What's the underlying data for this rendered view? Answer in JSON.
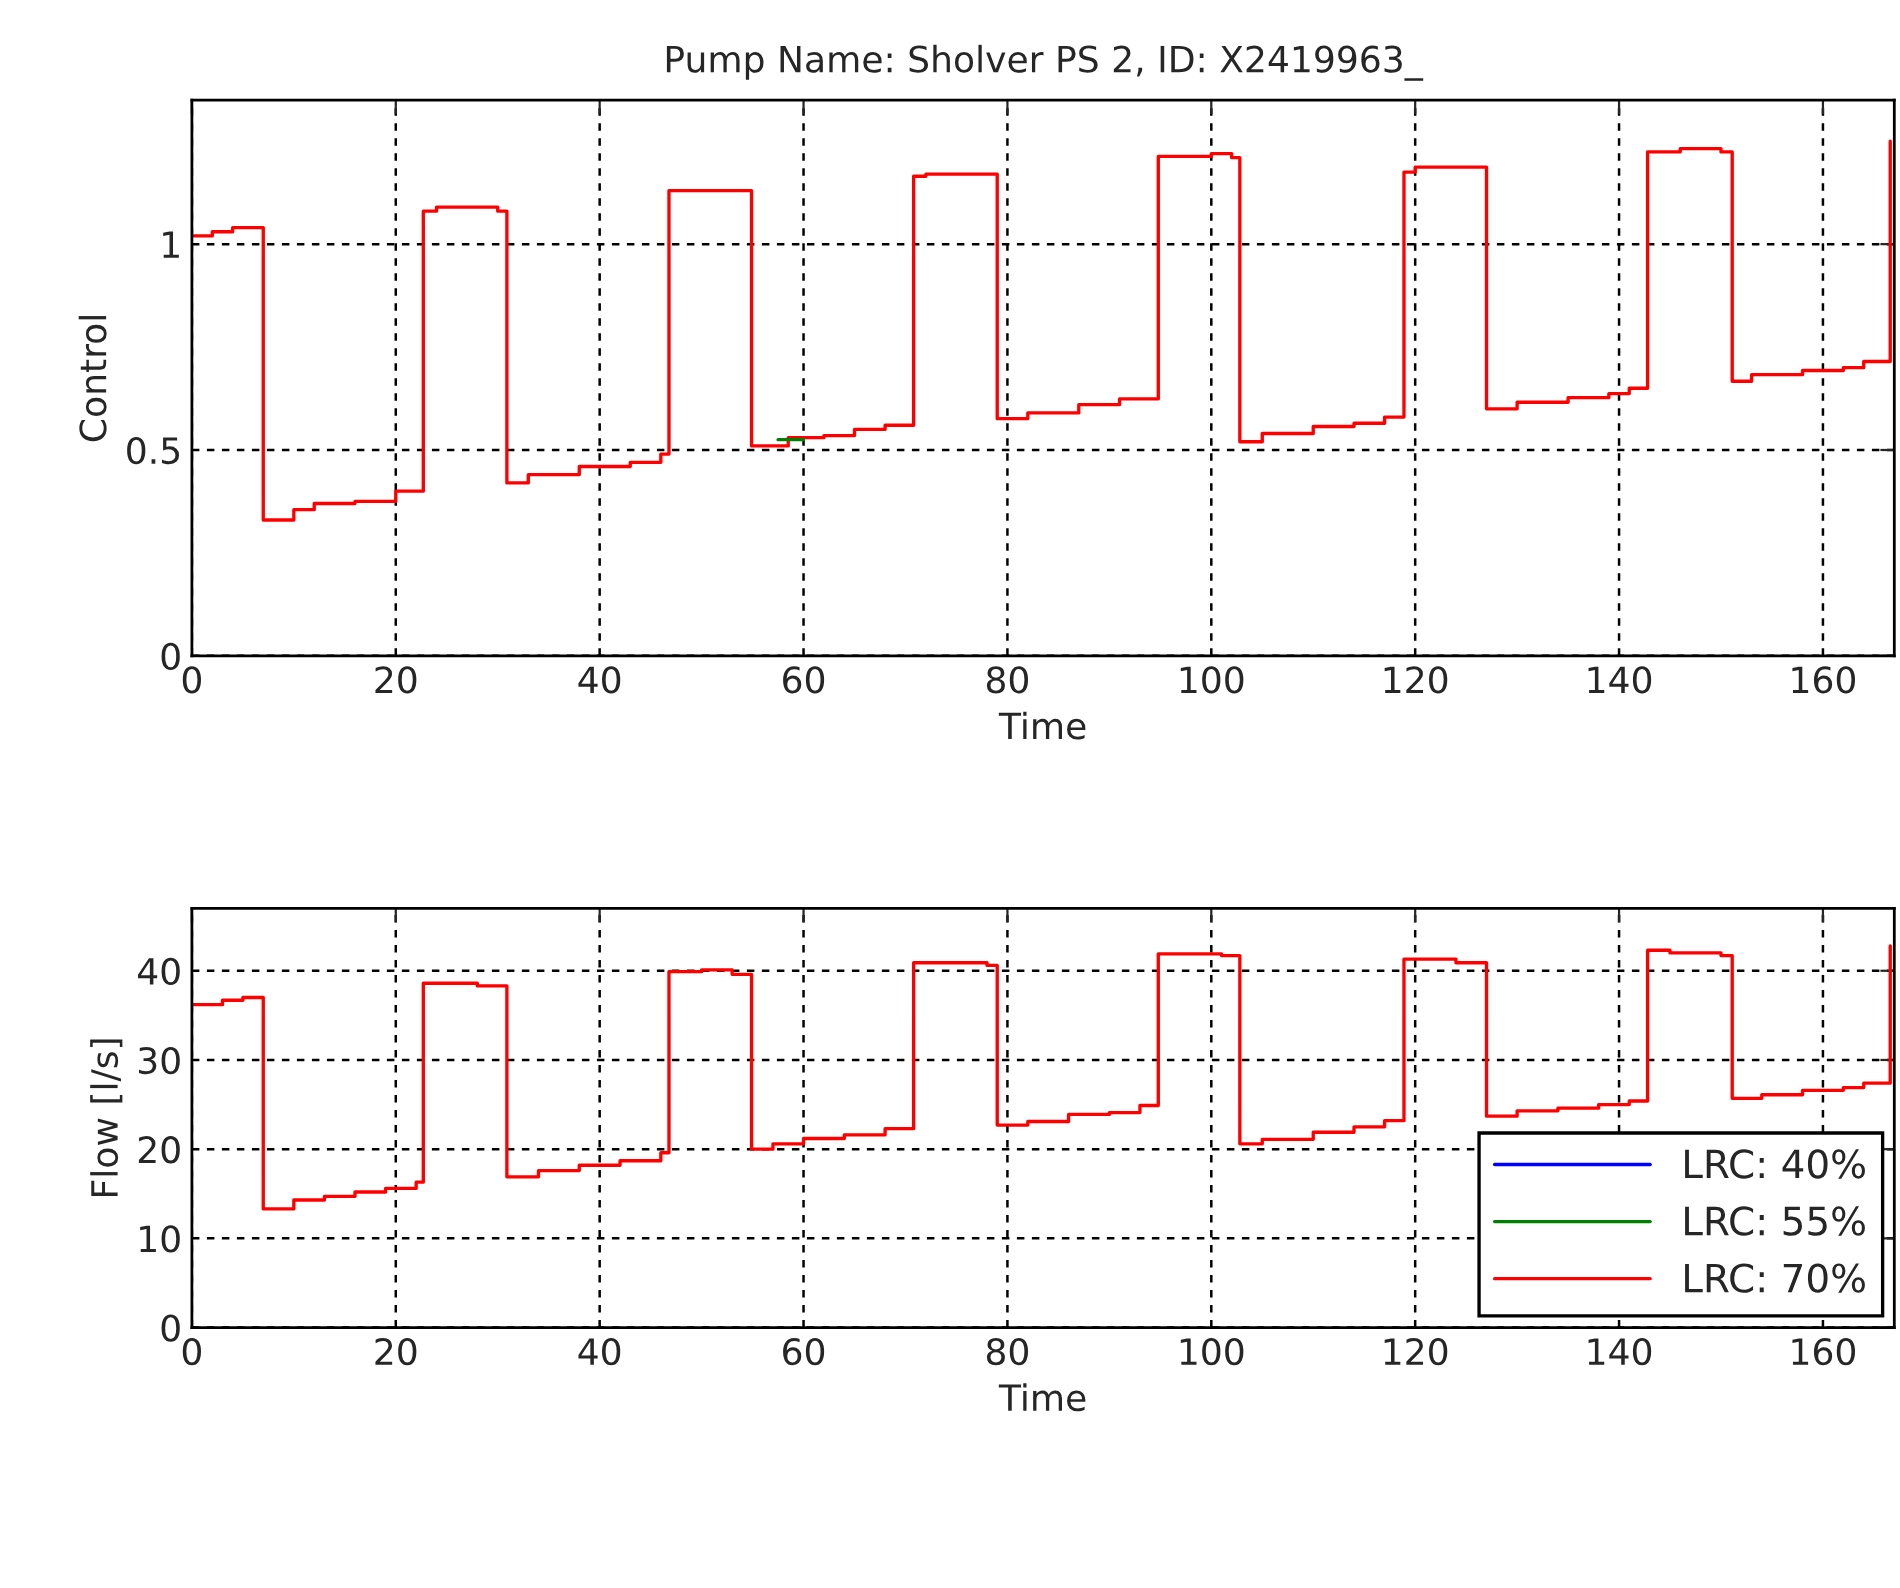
{
  "chart_data": [
    {
      "type": "step",
      "title": "Pump Name: Sholver PS 2, ID: X2419963_",
      "xlabel": "Time",
      "ylabel": "Control",
      "xlim": [
        0,
        167
      ],
      "xticks": [
        0,
        20,
        40,
        60,
        80,
        100,
        120,
        140,
        160
      ],
      "ylim": [
        0,
        1.35
      ],
      "yticks": [
        0,
        0.5,
        1
      ],
      "grid": true,
      "legend": false,
      "marker": "none",
      "line_style": "solid",
      "series": [
        {
          "color": "#ff0000",
          "x": [
            0,
            2,
            4,
            7.0,
            10,
            12,
            16,
            20,
            22.7,
            24,
            30,
            30.9,
            33,
            38,
            43,
            46,
            46.8,
            54.9,
            58.5,
            62,
            65,
            68,
            70.8,
            72,
            79,
            82,
            87,
            91,
            94.8,
            100,
            102,
            102.8,
            105,
            110,
            114,
            117,
            118.9,
            120,
            127,
            130,
            135,
            139,
            141,
            142.8,
            146,
            150,
            151.1,
            153,
            158,
            162,
            164,
            166.6
          ],
          "values": [
            1.02,
            1.03,
            1.04,
            0.33,
            0.355,
            0.37,
            0.375,
            0.4,
            1.08,
            1.09,
            1.08,
            0.42,
            0.44,
            0.46,
            0.47,
            0.49,
            1.13,
            0.51,
            0.53,
            0.535,
            0.55,
            0.56,
            1.165,
            1.17,
            0.576,
            0.59,
            0.61,
            0.624,
            1.213,
            1.22,
            1.21,
            0.52,
            0.54,
            0.557,
            0.565,
            0.58,
            1.175,
            1.187,
            0.6,
            0.616,
            0.627,
            0.637,
            0.65,
            1.224,
            1.232,
            1.224,
            0.667,
            0.683,
            0.693,
            0.7,
            0.715,
            1.25
          ]
        },
        {
          "color": "#008000",
          "x": [
            57.5,
            60
          ],
          "values": [
            0.525,
            0.525
          ]
        }
      ]
    },
    {
      "type": "step",
      "xlabel": "Time",
      "ylabel": "Flow [l/s]",
      "xlim": [
        0,
        167
      ],
      "xticks": [
        0,
        20,
        40,
        60,
        80,
        100,
        120,
        140,
        160
      ],
      "ylim": [
        0,
        47
      ],
      "yticks": [
        0,
        10,
        20,
        30,
        40
      ],
      "grid": true,
      "legend": "bottom right",
      "marker": "none",
      "line_style": "solid",
      "series": [
        {
          "name": "LRC: 40%",
          "color": "#0000ff"
        },
        {
          "name": "LRC: 55%",
          "color": "#008000"
        },
        {
          "name": "LRC: 70%",
          "color": "#ff0000",
          "x": [
            0,
            3,
            5,
            7.0,
            10,
            13,
            16,
            19,
            22,
            22.7,
            28,
            30.9,
            34,
            38,
            42,
            46,
            46.8,
            50,
            53,
            54.9,
            57,
            60,
            64,
            68,
            70.8,
            78,
            79,
            82,
            86,
            90,
            93,
            94.8,
            101,
            102.8,
            105,
            110,
            114,
            117,
            118.9,
            124,
            127,
            130,
            134,
            138,
            141,
            142.8,
            145,
            150,
            151.1,
            154,
            158,
            162,
            164,
            166.6
          ],
          "values": [
            36.2,
            36.7,
            37,
            13.3,
            14.3,
            14.7,
            15.2,
            15.6,
            16.3,
            38.6,
            38.3,
            16.9,
            17.6,
            18.2,
            18.7,
            19.6,
            39.9,
            40.1,
            39.6,
            20.0,
            20.6,
            21.2,
            21.6,
            22.3,
            40.9,
            40.6,
            22.7,
            23.1,
            23.9,
            24.1,
            24.9,
            41.9,
            41.7,
            20.6,
            21.1,
            21.9,
            22.5,
            23.2,
            41.3,
            40.9,
            23.7,
            24.3,
            24.6,
            25.0,
            25.4,
            42.3,
            42.0,
            41.7,
            25.7,
            26.1,
            26.6,
            26.9,
            27.4,
            42.8
          ]
        }
      ]
    }
  ]
}
